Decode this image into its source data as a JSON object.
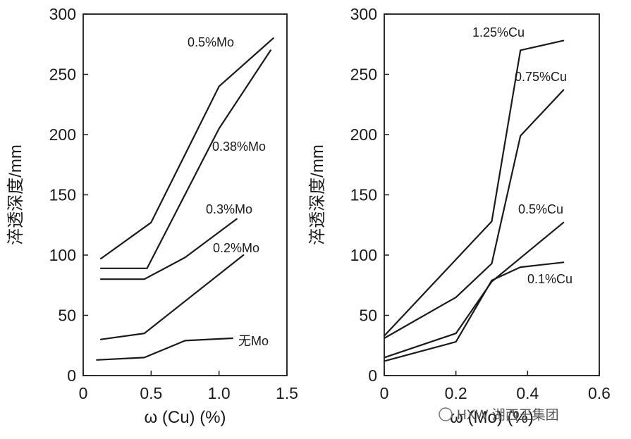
{
  "chart_data": [
    {
      "type": "line",
      "xlabel": "ω (Cu) (%)",
      "ylabel": "淬透深度/mm",
      "xlim": [
        0,
        1.5
      ],
      "ylim": [
        0,
        300
      ],
      "xticks": [
        "0",
        "0.5",
        "1.0",
        "1.5"
      ],
      "yticks": [
        "0",
        "50",
        "100",
        "150",
        "200",
        "250",
        "300"
      ],
      "series": [
        {
          "name": "0.5%Mo",
          "x": [
            0.13,
            0.5,
            1.0,
            1.4
          ],
          "y": [
            97,
            127,
            240,
            280
          ]
        },
        {
          "name": "0.38%Mo",
          "x": [
            0.13,
            0.47,
            1.0,
            1.38
          ],
          "y": [
            89,
            89,
            205,
            270
          ]
        },
        {
          "name": "0.3%Mo",
          "x": [
            0.13,
            0.45,
            0.75,
            1.13
          ],
          "y": [
            80,
            80,
            98,
            130
          ]
        },
        {
          "name": "0.2%Mo",
          "x": [
            0.13,
            0.45,
            1.18
          ],
          "y": [
            30,
            35,
            100
          ]
        },
        {
          "name": "无Mo",
          "x": [
            0.1,
            0.45,
            0.75,
            1.1
          ],
          "y": [
            13,
            15,
            29,
            31
          ]
        }
      ]
    },
    {
      "type": "line",
      "xlabel": "ω (Mo) (%)",
      "ylabel": "淬透深度/mm",
      "xlim": [
        0,
        0.6
      ],
      "ylim": [
        0,
        300
      ],
      "xticks": [
        "0",
        "0.2",
        "0.4",
        "0.6"
      ],
      "yticks": [
        "0",
        "50",
        "100",
        "150",
        "200",
        "250",
        "300"
      ],
      "series": [
        {
          "name": "1.25%Cu",
          "x": [
            0.0,
            0.3,
            0.38,
            0.5
          ],
          "y": [
            33,
            128,
            270,
            278
          ]
        },
        {
          "name": "0.75%Cu",
          "x": [
            0.0,
            0.2,
            0.3,
            0.38,
            0.5
          ],
          "y": [
            31,
            65,
            93,
            199,
            237
          ]
        },
        {
          "name": "0.5%Cu",
          "x": [
            0.0,
            0.2,
            0.3,
            0.5
          ],
          "y": [
            15,
            35,
            78,
            127
          ]
        },
        {
          "name": "0.1%Cu",
          "x": [
            0.0,
            0.2,
            0.3,
            0.38,
            0.5
          ],
          "y": [
            12,
            28,
            79,
            90,
            94
          ]
        }
      ]
    }
  ],
  "watermark": "HXW 湖西王集团"
}
